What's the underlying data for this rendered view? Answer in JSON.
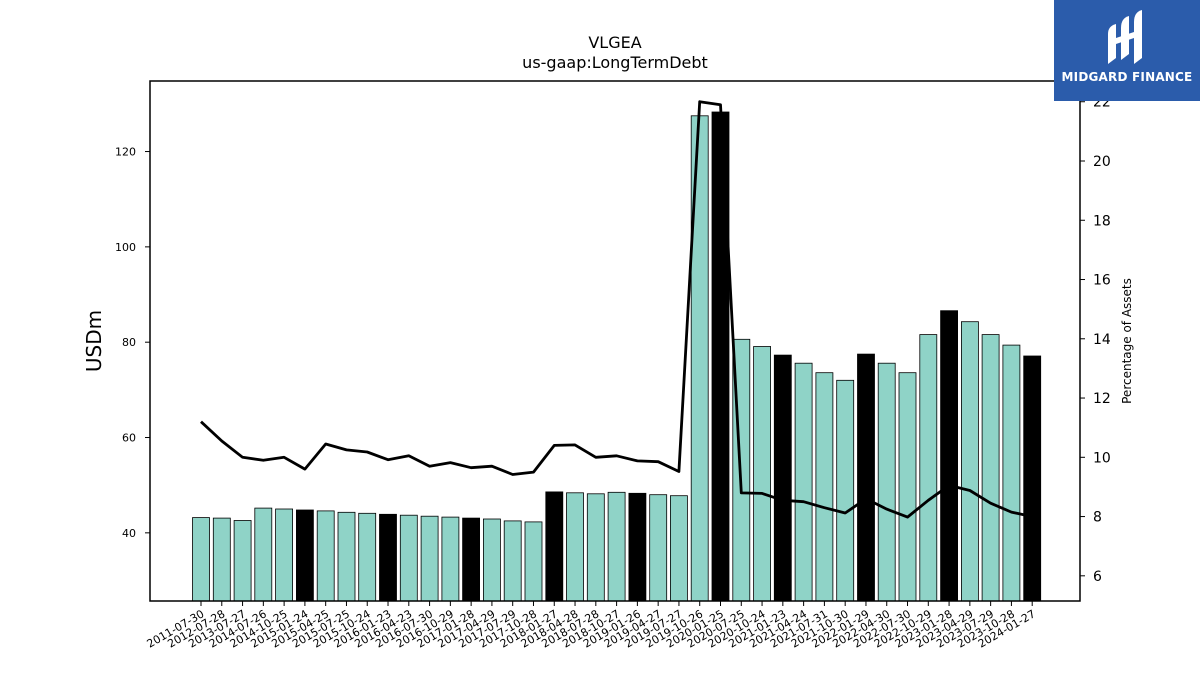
{
  "chart_data": {
    "type": "bar",
    "title": "VLGEA",
    "subtitle": "us-gaap:LongTermDebt",
    "ylabel": "USDm",
    "y2label": "Percentage of Assets",
    "ylim": [
      25.7,
      134.8
    ],
    "y2lim": [
      5.15,
      22.7
    ],
    "yticks": [
      40,
      60,
      80,
      100,
      120
    ],
    "y2ticks": [
      6,
      8,
      10,
      12,
      14,
      16,
      18,
      20,
      22
    ],
    "categories": [
      "2011-07-30",
      "2012-07-28",
      "2013-07-27",
      "2014-07-26",
      "2014-10-25",
      "2015-01-24",
      "2015-04-25",
      "2015-07-25",
      "2015-10-24",
      "2016-01-23",
      "2016-04-23",
      "2016-07-30",
      "2016-10-29",
      "2017-01-28",
      "2017-04-29",
      "2017-07-29",
      "2017-10-28",
      "2018-01-27",
      "2018-04-28",
      "2018-07-28",
      "2018-10-27",
      "2019-01-26",
      "2019-04-27",
      "2019-07-27",
      "2019-10-26",
      "2020-01-25",
      "2020-07-25",
      "2020-10-24",
      "2021-01-23",
      "2021-04-24",
      "2021-07-31",
      "2021-10-30",
      "2022-01-29",
      "2022-04-30",
      "2022-07-30",
      "2022-10-29",
      "2023-01-28",
      "2023-04-29",
      "2023-07-29",
      "2023-10-28",
      "2024-01-27"
    ],
    "series": [
      {
        "kind": "bar",
        "axis": "left",
        "values": [
          43.2,
          43.1,
          42.6,
          45.2,
          45.0,
          44.8,
          44.6,
          44.3,
          44.1,
          43.9,
          43.7,
          43.5,
          43.3,
          43.1,
          42.9,
          42.5,
          42.3,
          48.6,
          48.4,
          48.2,
          48.5,
          48.3,
          48.0,
          47.8,
          127.5,
          128.3,
          80.6,
          79.1,
          77.3,
          75.6,
          73.6,
          72.0,
          77.5,
          75.6,
          73.6,
          81.6,
          86.6,
          84.3,
          81.6,
          79.4,
          77.1
        ],
        "highlight": [
          false,
          false,
          false,
          false,
          false,
          true,
          false,
          false,
          false,
          true,
          false,
          false,
          false,
          true,
          false,
          false,
          false,
          true,
          false,
          false,
          false,
          true,
          false,
          false,
          false,
          true,
          false,
          false,
          true,
          false,
          false,
          false,
          true,
          false,
          false,
          false,
          true,
          false,
          false,
          false,
          true
        ],
        "color": "#8fd3c7",
        "highlight_color": "#000000"
      },
      {
        "kind": "line",
        "axis": "right",
        "values": [
          11.2,
          10.55,
          10.0,
          9.9,
          10.0,
          9.6,
          10.45,
          10.25,
          10.18,
          9.92,
          10.05,
          9.7,
          9.82,
          9.65,
          9.7,
          9.42,
          9.5,
          10.4,
          10.42,
          10.0,
          10.05,
          9.88,
          9.85,
          9.52,
          22.0,
          21.9,
          8.8,
          8.78,
          8.55,
          8.5,
          8.3,
          8.12,
          8.6,
          8.25,
          7.98,
          8.55,
          9.05,
          8.88,
          8.45,
          8.15,
          8.0
        ],
        "color": "#000000"
      }
    ],
    "grid": false
  },
  "branding": {
    "logo_text": "MIDGARD FINANCE"
  }
}
